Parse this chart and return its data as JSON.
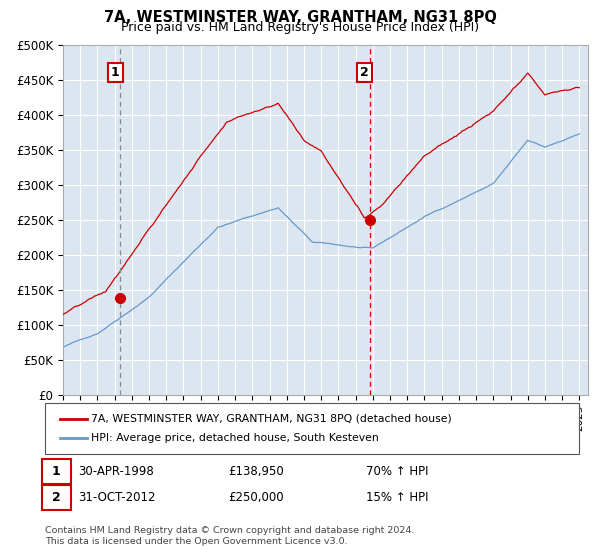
{
  "title": "7A, WESTMINSTER WAY, GRANTHAM, NG31 8PQ",
  "subtitle": "Price paid vs. HM Land Registry's House Price Index (HPI)",
  "ylabel_ticks": [
    "£0",
    "£50K",
    "£100K",
    "£150K",
    "£200K",
    "£250K",
    "£300K",
    "£350K",
    "£400K",
    "£450K",
    "£500K"
  ],
  "ymax": 500000,
  "ymin": 0,
  "legend_line1": "7A, WESTMINSTER WAY, GRANTHAM, NG31 8PQ (detached house)",
  "legend_line2": "HPI: Average price, detached house, South Kesteven",
  "annotation1_label": "1",
  "annotation1_date": "30-APR-1998",
  "annotation1_price": "£138,950",
  "annotation1_hpi": "70% ↑ HPI",
  "annotation1_year": 1998.33,
  "annotation2_label": "2",
  "annotation2_date": "31-OCT-2012",
  "annotation2_price": "£250,000",
  "annotation2_hpi": "15% ↑ HPI",
  "annotation2_year": 2012.83,
  "footnote": "Contains HM Land Registry data © Crown copyright and database right 2024.\nThis data is licensed under the Open Government Licence v3.0.",
  "plot_bg_color": "#dce6f1",
  "line_color_property": "#cc0000",
  "line_color_hpi": "#6699cc",
  "vline1_color": "#888888",
  "vline2_color": "#cc0000",
  "dot1_year": 1998.33,
  "dot1_price": 138950,
  "dot2_year": 2012.83,
  "dot2_price": 250000,
  "xmin": 1995.0,
  "xmax": 2025.5
}
